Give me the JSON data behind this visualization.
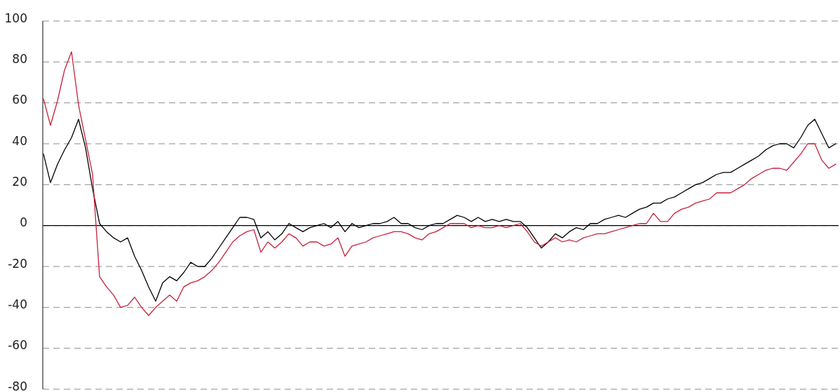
{
  "chart_data": {
    "type": "line",
    "categories": [
      null,
      null,
      null,
      null,
      null,
      null,
      null,
      null,
      null,
      null,
      null,
      null,
      null,
      null,
      null,
      null,
      null,
      null,
      null,
      null,
      null,
      null,
      null,
      null,
      null,
      null,
      null,
      null,
      null,
      null,
      null,
      null,
      null,
      null,
      null,
      null,
      null,
      null,
      null,
      null,
      null,
      null,
      null,
      null,
      null,
      null,
      null,
      null,
      null,
      null,
      null,
      null,
      null,
      null,
      null,
      null,
      null,
      null,
      null,
      null,
      null,
      null,
      null,
      null,
      null,
      null,
      null,
      null,
      null,
      null,
      null,
      null,
      null,
      null,
      null,
      null,
      null,
      null,
      null,
      null,
      null,
      null,
      null,
      null,
      null,
      null,
      null,
      null,
      null,
      null,
      null,
      null,
      null,
      null,
      null,
      null,
      null,
      null,
      null,
      null,
      null,
      null,
      null,
      null,
      null,
      null,
      null,
      null,
      null,
      null,
      null,
      null,
      null,
      null
    ],
    "series": [
      {
        "color": "#000000",
        "values": [
          35,
          21,
          30,
          37,
          43,
          52,
          38,
          18,
          1,
          -3,
          -6,
          -8,
          -6,
          -15,
          -22,
          -30,
          -37,
          -28,
          -25,
          -27,
          -23,
          -18,
          -20,
          -20,
          -16,
          -11,
          -6,
          -1,
          4,
          4,
          3,
          -6,
          -3,
          -7,
          -4,
          1,
          -1,
          -3,
          -1,
          0,
          1,
          -1,
          2,
          -3,
          1,
          -1,
          0,
          1,
          1,
          2,
          4,
          1,
          1,
          -1,
          -2,
          0,
          1,
          1,
          3,
          5,
          4,
          2,
          4,
          2,
          3,
          2,
          3,
          2,
          2,
          -1,
          -6,
          -11,
          -8,
          -4,
          -6,
          -3,
          -1,
          -2,
          1,
          1,
          3,
          4,
          5,
          4,
          6,
          8,
          9,
          11,
          11,
          13,
          14,
          16,
          18,
          20,
          21,
          23,
          25,
          26,
          26,
          28,
          30,
          32,
          34,
          37,
          39,
          40,
          40,
          38,
          43,
          49,
          52,
          45,
          38,
          40
        ]
      },
      {
        "color": "#c8203a",
        "values": [
          62,
          49,
          61,
          76,
          85,
          59,
          42,
          25,
          -25,
          -30,
          -34,
          -40,
          -39,
          -35,
          -40,
          -44,
          -40,
          -37,
          -34,
          -37,
          -30,
          -28,
          -27,
          -25,
          -22,
          -18,
          -13,
          -8,
          -5,
          -3,
          -2,
          -13,
          -8,
          -11,
          -8,
          -4,
          -6,
          -10,
          -8,
          -8,
          -10,
          -9,
          -6,
          -15,
          -10,
          -9,
          -8,
          -6,
          -5,
          -4,
          -3,
          -3,
          -4,
          -6,
          -7,
          -4,
          -3,
          -1,
          1,
          1,
          1,
          -1,
          0,
          -1,
          -1,
          0,
          -1,
          0,
          1,
          -3,
          -8,
          -10,
          -8,
          -6,
          -8,
          -7,
          -8,
          -6,
          -5,
          -4,
          -4,
          -3,
          -2,
          -1,
          0,
          1,
          1,
          6,
          2,
          2,
          6,
          8,
          9,
          11,
          12,
          13,
          16,
          16,
          16,
          18,
          20,
          23,
          25,
          27,
          28,
          28,
          27,
          31,
          35,
          40,
          40,
          32,
          28,
          30
        ]
      }
    ],
    "ylim": [
      -80,
      100
    ],
    "yticks": [
      -80,
      -60,
      -40,
      -20,
      0,
      20,
      40,
      60,
      80,
      100
    ],
    "grid": "y",
    "marker": "none",
    "line_style": "solid",
    "ref_lines": [
      {
        "axis": "y",
        "value": 0,
        "color": "#000000",
        "line_style": "solid"
      }
    ]
  }
}
